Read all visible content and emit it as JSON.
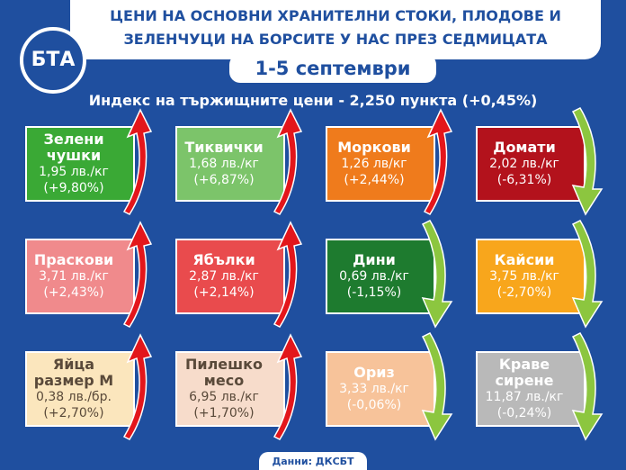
{
  "header": {
    "logo": "БТА",
    "title_lines": [
      "ЦЕНИ НА ОСНОВНИ ХРАНИТЕЛНИ СТОКИ, ПЛОДОВЕ И",
      "ЗЕЛЕНЧУЦИ НА БОРСИТЕ У НАС ПРЕЗ СЕДМИЦАТА"
    ],
    "date": "1-5 септември",
    "index": "Индекс на тържищните цени - 2,250 пункта (+0,45%)"
  },
  "cards": [
    {
      "name": [
        "Зелени чушки"
      ],
      "price": "1,95 лв./кг",
      "change": "(+9,80%)",
      "direction": "up",
      "color": "#3aa935",
      "text_color": "#ffffff"
    },
    {
      "name": [
        "Тиквички"
      ],
      "price": "1,68 лв./кг",
      "change": "(+6,87%)",
      "direction": "up",
      "color": "#7cc46a",
      "text_color": "#ffffff"
    },
    {
      "name": [
        "Моркови"
      ],
      "price": "1,26 лв/кг",
      "change": "(+2,44%)",
      "direction": "up",
      "color": "#ef7b1c",
      "text_color": "#ffffff"
    },
    {
      "name": [
        "Домати"
      ],
      "price": "2,02 лв./кг",
      "change": "(-6,31%)",
      "direction": "down",
      "color": "#b3121c",
      "text_color": "#ffffff"
    },
    {
      "name": [
        "Праскови"
      ],
      "price": "3,71 лв./кг",
      "change": "(+2,43%)",
      "direction": "up",
      "color": "#f08a8c",
      "text_color": "#ffffff"
    },
    {
      "name": [
        "Ябълки"
      ],
      "price": "2,87 лв./кг",
      "change": "(+2,14%)",
      "direction": "up",
      "color": "#e94b4d",
      "text_color": "#ffffff"
    },
    {
      "name": [
        "Дини"
      ],
      "price": "0,69 лв./кг",
      "change": "(-1,15%)",
      "direction": "down",
      "color": "#1e7b2f",
      "text_color": "#ffffff"
    },
    {
      "name": [
        "Кайсии"
      ],
      "price": "3,75 лв./кг",
      "change": "(-2,70%)",
      "direction": "down",
      "color": "#f8a61c",
      "text_color": "#ffffff"
    },
    {
      "name": [
        "Яйца",
        "размер М"
      ],
      "price": "0,38 лв./бр.",
      "change": "(+2,70%)",
      "direction": "up",
      "color": "#fbe6bd",
      "text_color": "#5a4a3a"
    },
    {
      "name": [
        "Пилешко",
        "месо"
      ],
      "price": "6,95 лв./кг",
      "change": "(+1,70%)",
      "direction": "up",
      "color": "#f7dccb",
      "text_color": "#5a4a3a"
    },
    {
      "name": [
        "Ориз"
      ],
      "price": "3,33 лв./кг",
      "change": "(-0,06%)",
      "direction": "down",
      "color": "#f7c39a",
      "text_color": "#ffffff"
    },
    {
      "name": [
        "Краве",
        "сирене"
      ],
      "price": "11,87 лв./кг",
      "change": "(-0,24%)",
      "direction": "down",
      "color": "#b9b9b9",
      "text_color": "#ffffff"
    }
  ],
  "footer": "Данни: ДКСБТ"
}
